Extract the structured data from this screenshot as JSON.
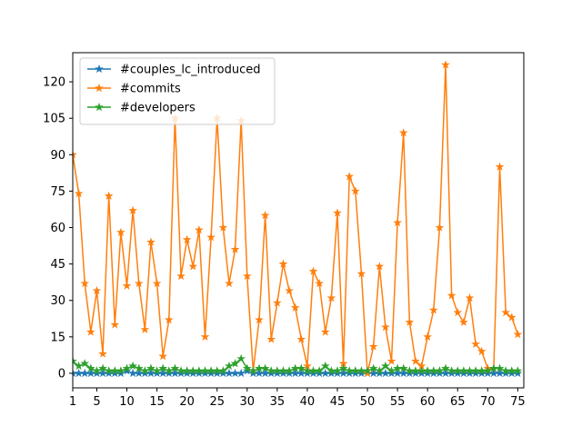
{
  "chart_data": {
    "type": "line",
    "title": "",
    "xlabel": "",
    "ylabel": "",
    "x": [
      1,
      2,
      3,
      4,
      5,
      6,
      7,
      8,
      9,
      10,
      11,
      12,
      13,
      14,
      15,
      16,
      17,
      18,
      19,
      20,
      21,
      22,
      23,
      24,
      25,
      26,
      27,
      28,
      29,
      30,
      31,
      32,
      33,
      34,
      35,
      36,
      37,
      38,
      39,
      40,
      41,
      42,
      43,
      44,
      45,
      46,
      47,
      48,
      49,
      50,
      51,
      52,
      53,
      54,
      55,
      56,
      57,
      58,
      59,
      60,
      61,
      62,
      63,
      64,
      65,
      66,
      67,
      68,
      69,
      70,
      71,
      72,
      73,
      74,
      75
    ],
    "xlim": [
      1,
      76
    ],
    "ylim": [
      -6,
      132
    ],
    "xticks": [
      1,
      5,
      10,
      15,
      20,
      25,
      30,
      35,
      40,
      45,
      50,
      55,
      60,
      65,
      70,
      75
    ],
    "xtick_labels": [
      "1",
      "5",
      "10",
      "15",
      "20",
      "25",
      "30",
      "35",
      "40",
      "45",
      "50",
      "55",
      "60",
      "65",
      "70",
      "75"
    ],
    "yticks": [
      0,
      15,
      30,
      45,
      60,
      75,
      90,
      105,
      120
    ],
    "ytick_labels": [
      "0",
      "15",
      "30",
      "45",
      "60",
      "75",
      "90",
      "105",
      "120"
    ],
    "grid": false,
    "legend_position": "top-left",
    "marker": "star",
    "series": [
      {
        "name": "#couples_lc_introduced",
        "color": "#1f77b4",
        "values": [
          0,
          0,
          0,
          0,
          0,
          0,
          0,
          0,
          0,
          1,
          0,
          0,
          0,
          0,
          0,
          0,
          0,
          0,
          0,
          0,
          0,
          0,
          0,
          0,
          0,
          0,
          0,
          0,
          0,
          1,
          0,
          0,
          0,
          0,
          0,
          0,
          0,
          0,
          0,
          0,
          0,
          0,
          0,
          0,
          0,
          0,
          0,
          0,
          0,
          0,
          0,
          0,
          0,
          0,
          0,
          0,
          0,
          0,
          0,
          0,
          0,
          0,
          0,
          0,
          0,
          0,
          0,
          0,
          0,
          0,
          0,
          0,
          0,
          0,
          0
        ]
      },
      {
        "name": "#commits",
        "color": "#ff7f0e",
        "values": [
          90,
          74,
          37,
          17,
          34,
          8,
          73,
          20,
          58,
          36,
          67,
          37,
          18,
          54,
          37,
          7,
          22,
          105,
          40,
          55,
          44,
          59,
          15,
          56,
          105,
          60,
          37,
          51,
          104,
          40,
          1,
          22,
          65,
          14,
          29,
          45,
          34,
          27,
          14,
          3,
          42,
          37,
          17,
          31,
          66,
          4,
          81,
          75,
          41,
          0,
          11,
          44,
          19,
          5,
          62,
          99,
          21,
          5,
          3,
          15,
          26,
          60,
          127,
          32,
          25,
          21,
          31,
          12,
          9,
          2,
          2,
          85,
          25,
          23,
          16
        ]
      },
      {
        "name": "#developers",
        "color": "#2ca02c",
        "values": [
          5,
          3,
          4,
          2,
          1,
          2,
          1,
          1,
          1,
          2,
          3,
          2,
          1,
          2,
          1,
          2,
          1,
          2,
          1,
          1,
          1,
          1,
          1,
          1,
          1,
          1,
          3,
          4,
          6,
          2,
          1,
          2,
          2,
          1,
          1,
          1,
          1,
          2,
          2,
          1,
          1,
          1,
          3,
          1,
          1,
          2,
          1,
          1,
          1,
          1,
          2,
          1,
          3,
          1,
          2,
          2,
          1,
          1,
          1,
          1,
          1,
          1,
          2,
          1,
          1,
          1,
          1,
          1,
          1,
          1,
          2,
          2,
          1,
          1,
          1
        ]
      }
    ]
  }
}
